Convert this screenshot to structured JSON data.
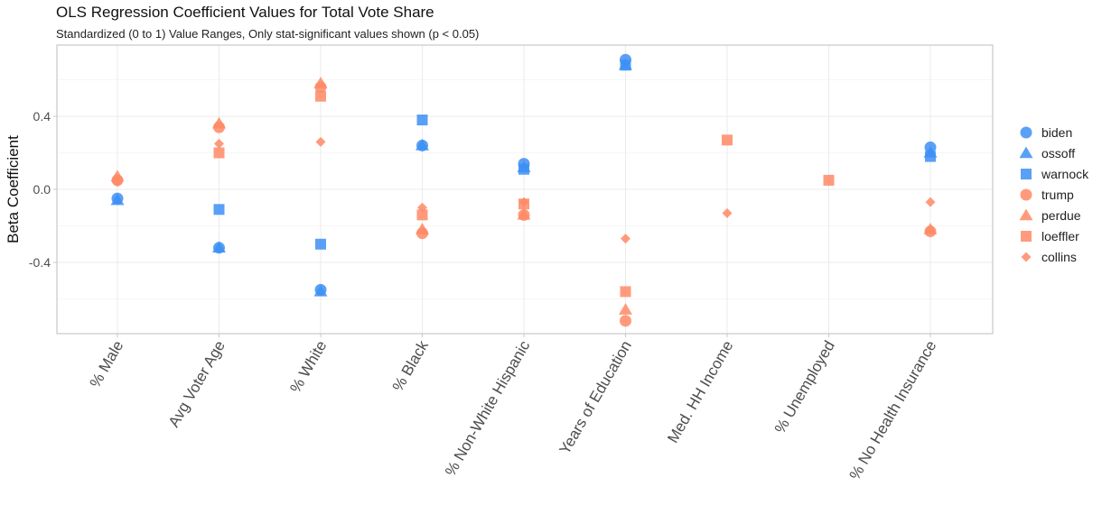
{
  "chart_data": {
    "type": "scatter",
    "title": "OLS Regression Coefficient Values for Total Vote Share",
    "subtitle": "Standardized (0 to 1) Value Ranges, Only stat-significant values shown (p < 0.05)",
    "xlabel": "",
    "ylabel": "Beta Coefficient",
    "ylim": [
      -0.79,
      0.79
    ],
    "yticks": [
      -0.4,
      0.0,
      0.4
    ],
    "ytick_labels": [
      "-0.4",
      "0.0",
      "0.4"
    ],
    "grid": true,
    "legend_position": "right",
    "categories": [
      "% Male",
      "Avg Voter Age",
      "% White",
      "% Black",
      "% Non-White Hispanic",
      "Years of Education",
      "Med. HH Income",
      "% Unemployed",
      "% No Health Insurance"
    ],
    "series": [
      {
        "name": "biden",
        "marker": "circle",
        "color": "#3d8ff5",
        "values": [
          -0.05,
          -0.32,
          -0.55,
          0.24,
          0.14,
          0.71,
          null,
          null,
          0.23
        ]
      },
      {
        "name": "ossoff",
        "marker": "triangle",
        "color": "#3d8ff5",
        "values": [
          -0.06,
          -0.32,
          -0.56,
          0.24,
          0.12,
          0.68,
          null,
          null,
          0.2
        ]
      },
      {
        "name": "warnock",
        "marker": "square",
        "color": "#3d8ff5",
        "values": [
          null,
          -0.11,
          -0.3,
          0.38,
          0.11,
          0.68,
          null,
          null,
          0.18
        ]
      },
      {
        "name": "trump",
        "marker": "circle",
        "color": "#ff8a65",
        "values": [
          0.05,
          0.34,
          0.56,
          -0.24,
          -0.14,
          -0.72,
          null,
          null,
          -0.23
        ]
      },
      {
        "name": "perdue",
        "marker": "triangle",
        "color": "#ff8a65",
        "values": [
          0.07,
          0.36,
          0.58,
          -0.22,
          -0.14,
          -0.66,
          null,
          null,
          -0.22
        ]
      },
      {
        "name": "loeffler",
        "marker": "square",
        "color": "#ff8a65",
        "values": [
          null,
          0.2,
          0.51,
          -0.14,
          -0.08,
          -0.56,
          0.27,
          0.05,
          null
        ]
      },
      {
        "name": "collins",
        "marker": "diamond",
        "color": "#ff8a65",
        "values": [
          0.04,
          0.25,
          0.26,
          -0.1,
          -0.07,
          -0.27,
          -0.13,
          null,
          -0.07
        ]
      }
    ]
  }
}
